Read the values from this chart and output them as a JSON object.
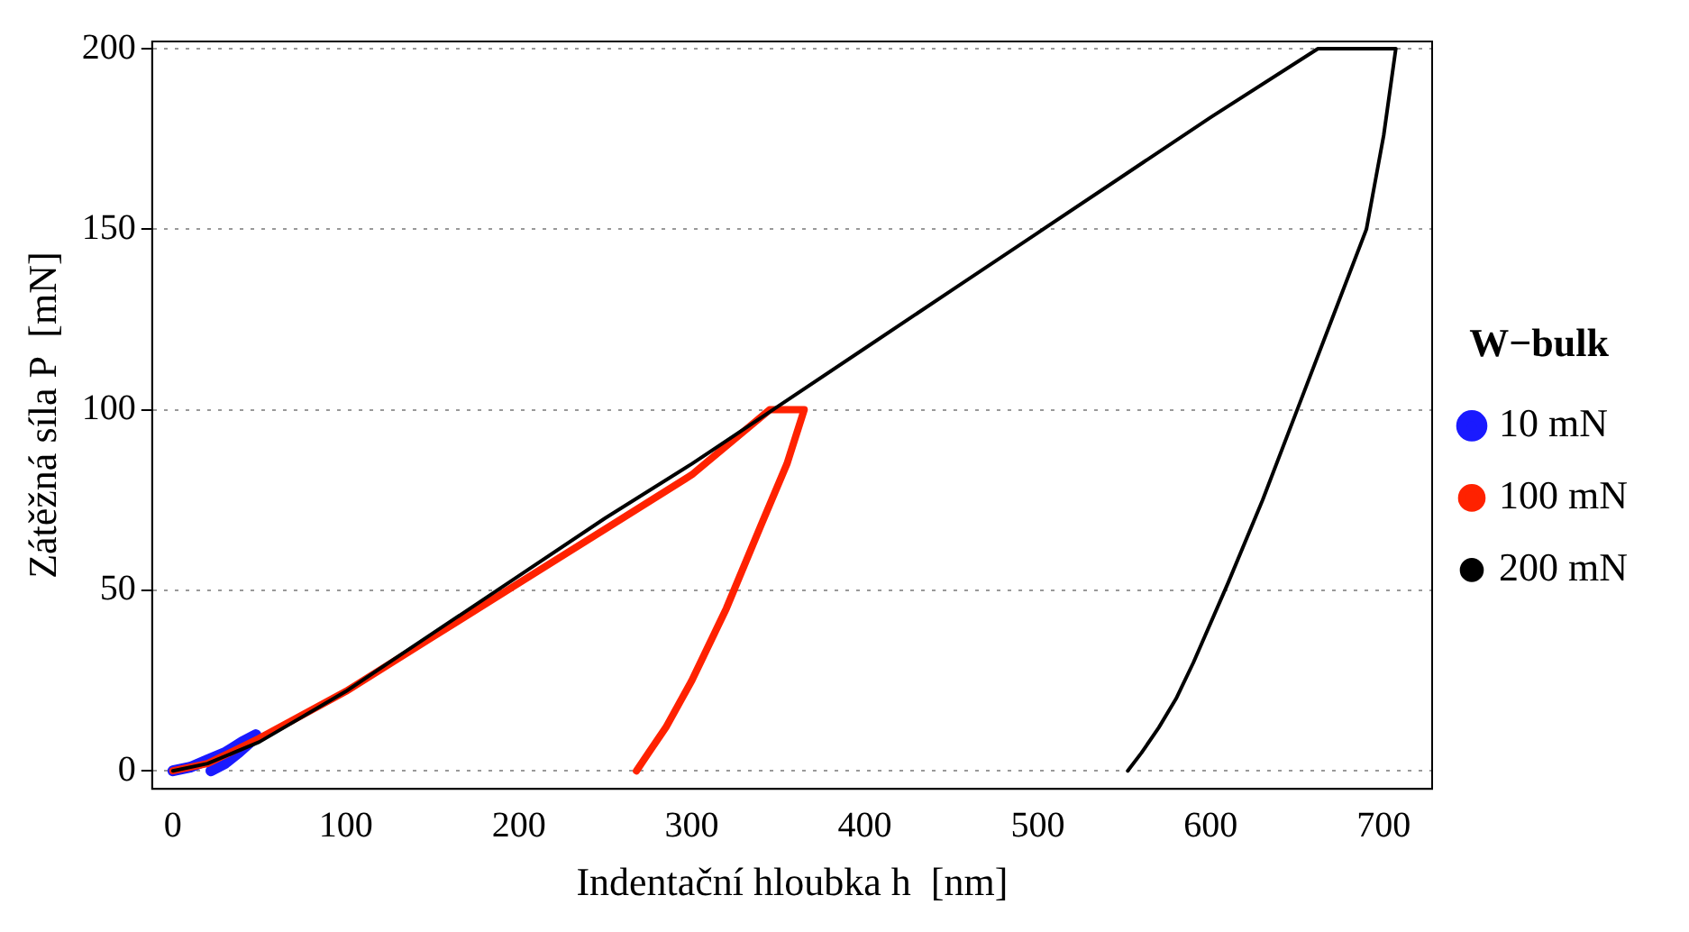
{
  "chart_data": {
    "type": "line",
    "xlabel": "Indentační hloubka h  [nm]",
    "ylabel": "Zátěžná síla P  [mN]",
    "legend_title": "W−bulk",
    "xlim": [
      -12,
      728
    ],
    "ylim": [
      -5,
      202
    ],
    "xticks": [
      0,
      100,
      200,
      300,
      400,
      500,
      600,
      700
    ],
    "yticks": [
      0,
      50,
      100,
      150,
      200
    ],
    "grid": "y",
    "legend": "right",
    "marker": "none",
    "line_style": "solid",
    "series": [
      {
        "name": "10 mN",
        "color": "#1a1aff",
        "x": [
          0,
          10,
          20,
          30,
          40,
          48,
          45,
          38,
          30,
          22
        ],
        "values": [
          0,
          1,
          3,
          5,
          8,
          10,
          8,
          5,
          2,
          0
        ]
      },
      {
        "name": "100 mN",
        "color": "#ff2200",
        "x": [
          0,
          20,
          50,
          100,
          150,
          200,
          250,
          300,
          345,
          365,
          355,
          340,
          320,
          300,
          285,
          275,
          268
        ],
        "values": [
          0,
          2,
          9,
          22,
          37,
          52,
          67,
          82,
          100,
          100,
          85,
          68,
          45,
          25,
          12,
          5,
          0
        ]
      },
      {
        "name": "200 mN",
        "color": "#000000",
        "x": [
          0,
          20,
          50,
          100,
          150,
          200,
          250,
          300,
          350,
          400,
          450,
          500,
          550,
          600,
          662,
          707,
          700,
          690,
          670,
          650,
          630,
          610,
          590,
          580,
          570,
          560,
          552
        ],
        "values": [
          0,
          2,
          8,
          22,
          38,
          54,
          70,
          85,
          101,
          117,
          133,
          149,
          165,
          181,
          200,
          200,
          176,
          150,
          125,
          100,
          75,
          52,
          30,
          20,
          12,
          5,
          0
        ]
      }
    ]
  }
}
